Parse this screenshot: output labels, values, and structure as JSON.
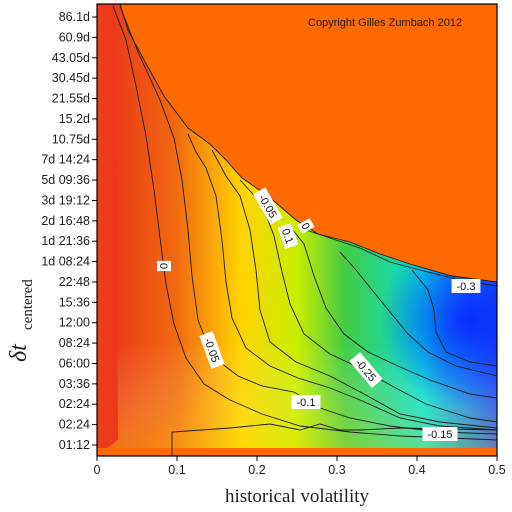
{
  "chart_data": {
    "type": "heatmap",
    "title": "",
    "copyright": "Copyright Gilles Zumbach 2012",
    "xlabel": "historical volatility",
    "ylabel_main": "δt",
    "ylabel_sub": "centered",
    "xlim": [
      0,
      0.5
    ],
    "x_ticks": [
      "0",
      "0.1",
      "0.2",
      "0.3",
      "0.4",
      "0.5"
    ],
    "y_ticks": [
      "01:12",
      "02:24",
      "02:24",
      "03:36",
      "06:00",
      "08:24",
      "12:00",
      "15:36",
      "22:48",
      "1d 08:24",
      "1d 21:36",
      "2d 16:48",
      "3d 19:12",
      "5d 09:36",
      "7d 14:24",
      "10.75d",
      "15.2d",
      "21.55d",
      "30.45d",
      "43.05d",
      "60.9d",
      "86.1d"
    ],
    "colorscale": [
      "#e8301c",
      "#f26a10",
      "#ffd400",
      "#e4f200",
      "#44cc44",
      "#00e0e0",
      "#1a4cff"
    ],
    "no_data_color": "#ff6a00",
    "contour_levels": [
      {
        "label": "0",
        "value": 0
      },
      {
        "label": "-0.05",
        "value": -0.05
      },
      {
        "label": "-0.1",
        "value": -0.1
      },
      {
        "label": "-0.15",
        "value": -0.15
      },
      {
        "label": "-0.25",
        "value": -0.25
      },
      {
        "label": "-0.3",
        "value": -0.3
      },
      {
        "label": "-0.05",
        "value": -0.05
      },
      {
        "label": "0.1",
        "value": 0.1
      },
      {
        "label": "0",
        "value": 0
      }
    ],
    "grid": false
  }
}
